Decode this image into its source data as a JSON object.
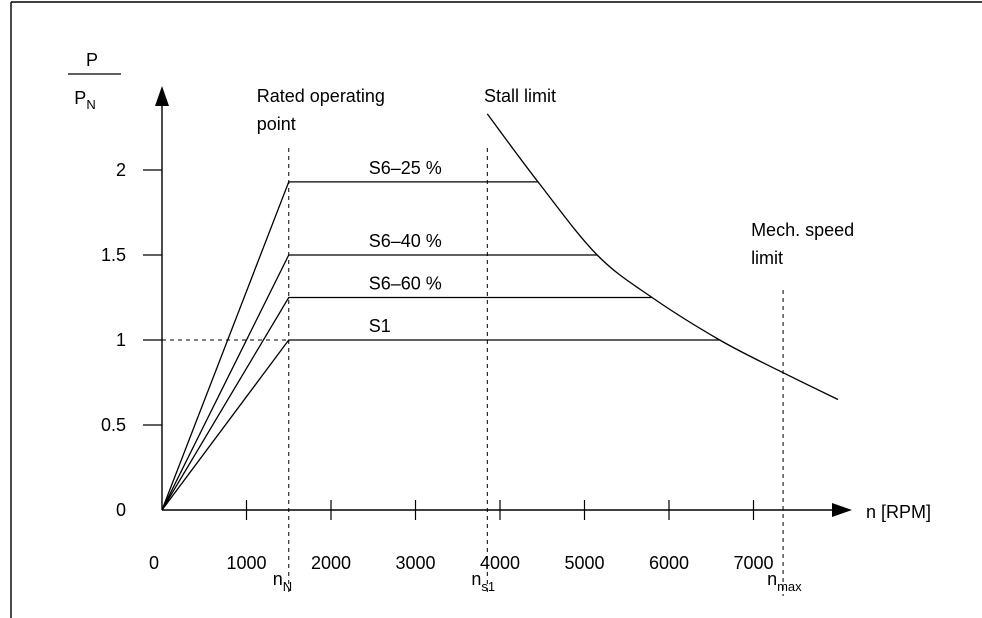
{
  "chart_data": {
    "type": "line",
    "yaxis_label": {
      "numerator": "P",
      "denominator": "P",
      "denominator_sub": "N"
    },
    "xaxis_label": "n [RPM]",
    "x_ticks": [
      "0",
      "1000",
      "2000",
      "3000",
      "4000",
      "5000",
      "6000",
      "7000"
    ],
    "x_tick_values": [
      0,
      1000,
      2000,
      3000,
      4000,
      5000,
      6000,
      7000
    ],
    "y_ticks": [
      "0",
      "0.5",
      "1",
      "1.5",
      "2"
    ],
    "y_tick_values": [
      0,
      0.5,
      1,
      1.5,
      2
    ],
    "xlim": [
      0,
      8000
    ],
    "ylim": [
      0,
      2.5
    ],
    "series": [
      {
        "name": "S6–25 %",
        "points": [
          [
            0,
            0
          ],
          [
            1500,
            1.93
          ],
          [
            4450,
            1.93
          ]
        ]
      },
      {
        "name": "S6–40 %",
        "points": [
          [
            0,
            0
          ],
          [
            1500,
            1.5
          ],
          [
            5150,
            1.5
          ]
        ]
      },
      {
        "name": "S6–60 %",
        "points": [
          [
            0,
            0
          ],
          [
            1500,
            1.25
          ],
          [
            5800,
            1.25
          ]
        ]
      },
      {
        "name": "S1",
        "points": [
          [
            0,
            0
          ],
          [
            1500,
            1.0
          ],
          [
            6600,
            1.0
          ]
        ]
      }
    ],
    "stall_limit": {
      "label": "Stall limit",
      "points": [
        [
          3850,
          2.33
        ],
        [
          4450,
          1.93
        ],
        [
          5150,
          1.5
        ],
        [
          5800,
          1.25
        ],
        [
          6600,
          1.0
        ],
        [
          7300,
          0.82
        ],
        [
          8000,
          0.65
        ]
      ]
    },
    "markers": [
      {
        "x": 1500,
        "label": "n",
        "sub": "N",
        "annotation_lines": [
          "Rated operating",
          "point"
        ]
      },
      {
        "x": 3850,
        "label": "n",
        "sub": "s1",
        "annotation_lines": []
      },
      {
        "x": 7350,
        "label": "n",
        "sub": "max",
        "annotation_lines": [
          "Mech. speed",
          "limit"
        ]
      }
    ],
    "reference_y": 1
  }
}
